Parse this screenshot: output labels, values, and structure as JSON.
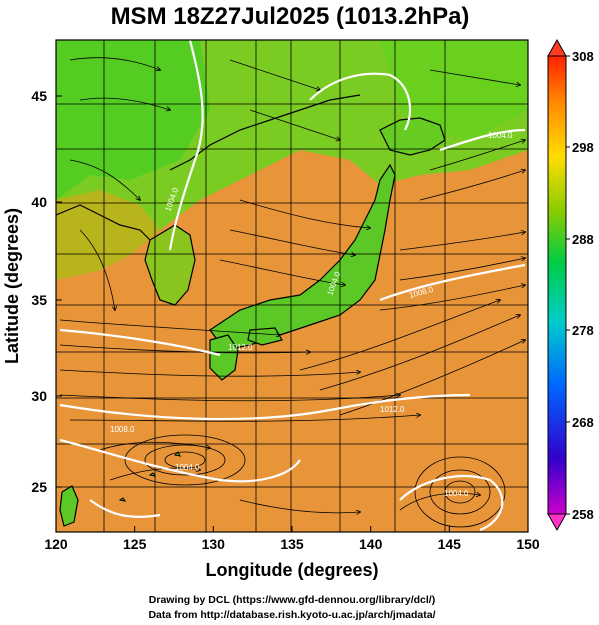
{
  "title": "MSM 18Z27Jul2025 (1013.2hPa)",
  "x_axis": {
    "label": "Longitude (degrees)",
    "range": [
      120,
      150
    ],
    "ticks": [
      "120",
      "125",
      "130",
      "135",
      "140",
      "145",
      "150"
    ]
  },
  "y_axis": {
    "label": "Latitude  (degrees)",
    "range": [
      22.4,
      47.6
    ],
    "ticks": [
      "25",
      "30",
      "35",
      "40",
      "45"
    ]
  },
  "colorbar": {
    "ticks": [
      "308",
      "298",
      "288",
      "278",
      "268",
      "258"
    ],
    "range": [
      258,
      308
    ],
    "colors": [
      "#cc00cc",
      "#0000cc",
      "#0099ff",
      "#00cccc",
      "#00cc66",
      "#33cc00",
      "#99cc00",
      "#ffcc00",
      "#ff9900",
      "#ff3300"
    ]
  },
  "isobars": [
    "1004.0",
    "1004.0",
    "1008.0",
    "1012.0",
    "1008.0",
    "1004.0",
    "1004.0",
    "1004.0",
    "1012.0"
  ],
  "credits": {
    "line1": "Drawing by DCL (https://www.gfd-dennou.org/library/dcl/)",
    "line2": "Data from http://database.rish.kyoto-u.ac.jp/arch/jmadata/"
  },
  "colors": {
    "land_green": "#66cc22",
    "sea_orange": "#e89a3c",
    "isobar": "#ffffff",
    "coast": "#000000"
  }
}
